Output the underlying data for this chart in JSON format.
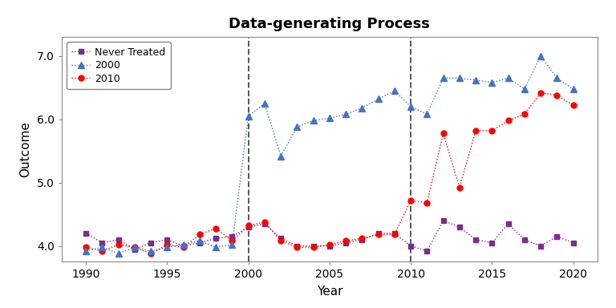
{
  "title": "Data-generating Process",
  "xlabel": "Year",
  "ylabel": "Outcome",
  "xlim": [
    1988.5,
    2021.5
  ],
  "ylim": [
    3.75,
    7.3
  ],
  "yticks": [
    4.0,
    5.0,
    6.0,
    7.0
  ],
  "ytick_labels": [
    "4.0",
    "5.0",
    "6.0",
    "7.0"
  ],
  "xticks": [
    1990,
    1995,
    2000,
    2005,
    2010,
    2015,
    2020
  ],
  "vlines": [
    2000,
    2010
  ],
  "never_treated": {
    "years": [
      1990,
      1991,
      1992,
      1993,
      1994,
      1995,
      1996,
      1997,
      1998,
      1999,
      2000,
      2001,
      2002,
      2003,
      2004,
      2005,
      2006,
      2007,
      2008,
      2009,
      2010,
      2011,
      2012,
      2013,
      2014,
      2015,
      2016,
      2017,
      2018,
      2019,
      2020
    ],
    "values": [
      4.2,
      4.05,
      4.1,
      3.95,
      4.05,
      4.1,
      4.0,
      4.05,
      4.12,
      4.15,
      4.3,
      4.35,
      4.12,
      4.0,
      4.0,
      4.0,
      4.05,
      4.1,
      4.2,
      4.2,
      4.0,
      3.92,
      4.4,
      4.3,
      4.1,
      4.05,
      4.35,
      4.1,
      4.0,
      4.15,
      4.05
    ],
    "color": "#7B2D8B",
    "marker": "s",
    "linestyle": ":"
  },
  "treated_2000": {
    "years": [
      1990,
      1991,
      1992,
      1993,
      1994,
      1995,
      1996,
      1997,
      1998,
      1999,
      2000,
      2001,
      2002,
      2003,
      2004,
      2005,
      2006,
      2007,
      2008,
      2009,
      2010,
      2011,
      2012,
      2013,
      2014,
      2015,
      2016,
      2017,
      2018,
      2019,
      2020
    ],
    "values": [
      3.92,
      3.98,
      3.88,
      3.98,
      3.92,
      3.98,
      4.02,
      4.08,
      3.98,
      4.02,
      6.05,
      6.25,
      5.42,
      5.88,
      5.98,
      6.02,
      6.08,
      6.18,
      6.32,
      6.45,
      6.2,
      6.08,
      6.65,
      6.65,
      6.62,
      6.58,
      6.65,
      6.48,
      7.0,
      6.65,
      6.48
    ],
    "color": "#4472C4",
    "marker": "^",
    "linestyle": ":"
  },
  "treated_2010": {
    "years": [
      1990,
      1991,
      1992,
      1993,
      1994,
      1995,
      1996,
      1997,
      1998,
      1999,
      2000,
      2001,
      2002,
      2003,
      2004,
      2005,
      2006,
      2007,
      2008,
      2009,
      2010,
      2011,
      2012,
      2013,
      2014,
      2015,
      2016,
      2017,
      2018,
      2019,
      2020
    ],
    "values": [
      3.98,
      3.92,
      4.02,
      3.98,
      3.88,
      4.02,
      3.98,
      4.18,
      4.28,
      4.08,
      4.32,
      4.38,
      4.08,
      3.98,
      3.98,
      4.02,
      4.08,
      4.12,
      4.18,
      4.18,
      4.72,
      4.68,
      5.78,
      4.92,
      5.82,
      5.82,
      5.98,
      6.08,
      6.42,
      6.38,
      6.22
    ],
    "color": "#FF0000",
    "marker": "o",
    "linestyle": ":"
  },
  "legend_labels": [
    "Never Treated",
    "2000",
    "2010"
  ],
  "background_color": "#ffffff",
  "title_fontsize": 13,
  "label_fontsize": 11,
  "tick_fontsize": 10
}
